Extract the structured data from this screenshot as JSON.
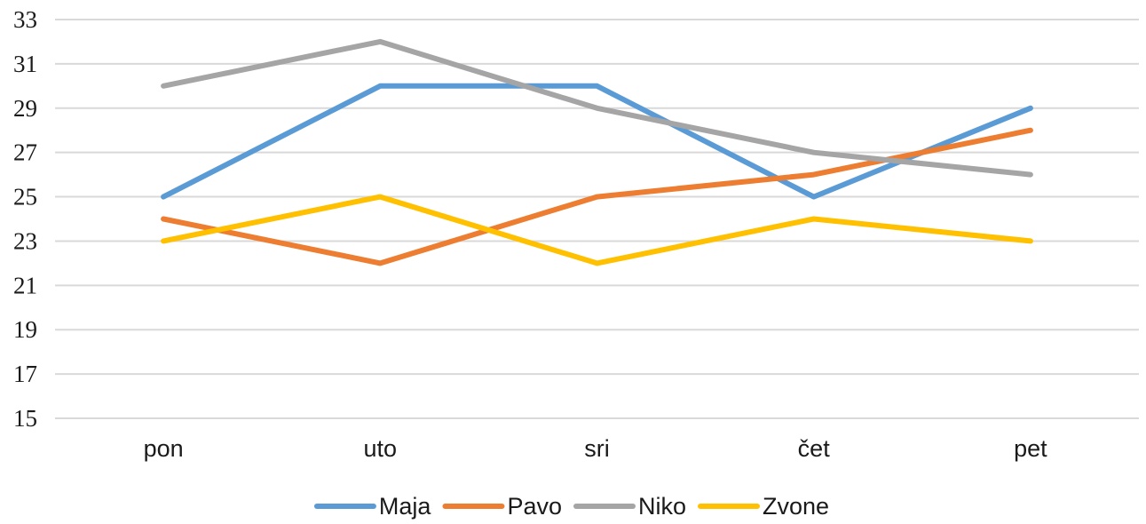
{
  "chart_data": {
    "type": "line",
    "categories": [
      "pon",
      "uto",
      "sri",
      "čet",
      "pet"
    ],
    "ylim": [
      15,
      33
    ],
    "yticks": [
      15,
      17,
      19,
      21,
      23,
      25,
      27,
      29,
      31,
      33
    ],
    "grid": true,
    "legend_position": "bottom",
    "series": [
      {
        "name": "Maja",
        "color": "#5b9bd5",
        "values": [
          25,
          30,
          30,
          25,
          29
        ]
      },
      {
        "name": "Pavo",
        "color": "#ed7d31",
        "values": [
          24,
          22,
          25,
          26,
          28
        ]
      },
      {
        "name": "Niko",
        "color": "#a5a5a5",
        "values": [
          30,
          32,
          29,
          27,
          26
        ]
      },
      {
        "name": "Zvone",
        "color": "#ffc000",
        "values": [
          23,
          25,
          22,
          24,
          23
        ]
      }
    ]
  }
}
